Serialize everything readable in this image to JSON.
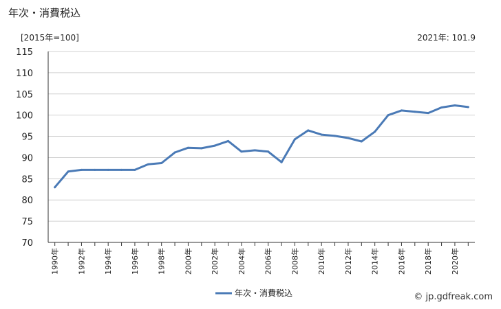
{
  "title": "年次・消費税込",
  "unit_label": "[2015年=100]",
  "latest_label": "2021年: 101.9",
  "credit": "© jp.gdfreak.com",
  "colors": {
    "line": "#4a7ab6",
    "grid": "#d0d0d0",
    "axis": "#333333"
  },
  "chart_data": {
    "type": "line",
    "title": "年次・消費税込",
    "ylabel": "[2015年=100]",
    "ylim": [
      70,
      115
    ],
    "yticks": [
      70,
      75,
      80,
      85,
      90,
      95,
      100,
      105,
      110,
      115
    ],
    "x": [
      1990,
      1991,
      1992,
      1993,
      1994,
      1995,
      1996,
      1997,
      1998,
      1999,
      2000,
      2001,
      2002,
      2003,
      2004,
      2005,
      2006,
      2007,
      2008,
      2009,
      2010,
      2011,
      2012,
      2013,
      2014,
      2015,
      2016,
      2017,
      2018,
      2019,
      2020,
      2021
    ],
    "xtick_labels": [
      "1990年",
      "1992年",
      "1994年",
      "1996年",
      "1998年",
      "2000年",
      "2002年",
      "2004年",
      "2006年",
      "2008年",
      "2010年",
      "2012年",
      "2014年",
      "2016年",
      "2018年",
      "2020年"
    ],
    "series": [
      {
        "name": "年次・消費税込",
        "values": [
          83.0,
          86.7,
          87.1,
          87.1,
          87.1,
          87.1,
          87.1,
          88.4,
          88.7,
          91.2,
          92.3,
          92.2,
          92.8,
          93.9,
          91.4,
          91.7,
          91.4,
          88.9,
          94.3,
          96.4,
          95.4,
          95.1,
          94.6,
          93.8,
          96.1,
          100.0,
          101.1,
          100.8,
          100.5,
          101.8,
          102.3,
          101.9
        ]
      }
    ],
    "grid": true,
    "legend": "bottom"
  }
}
